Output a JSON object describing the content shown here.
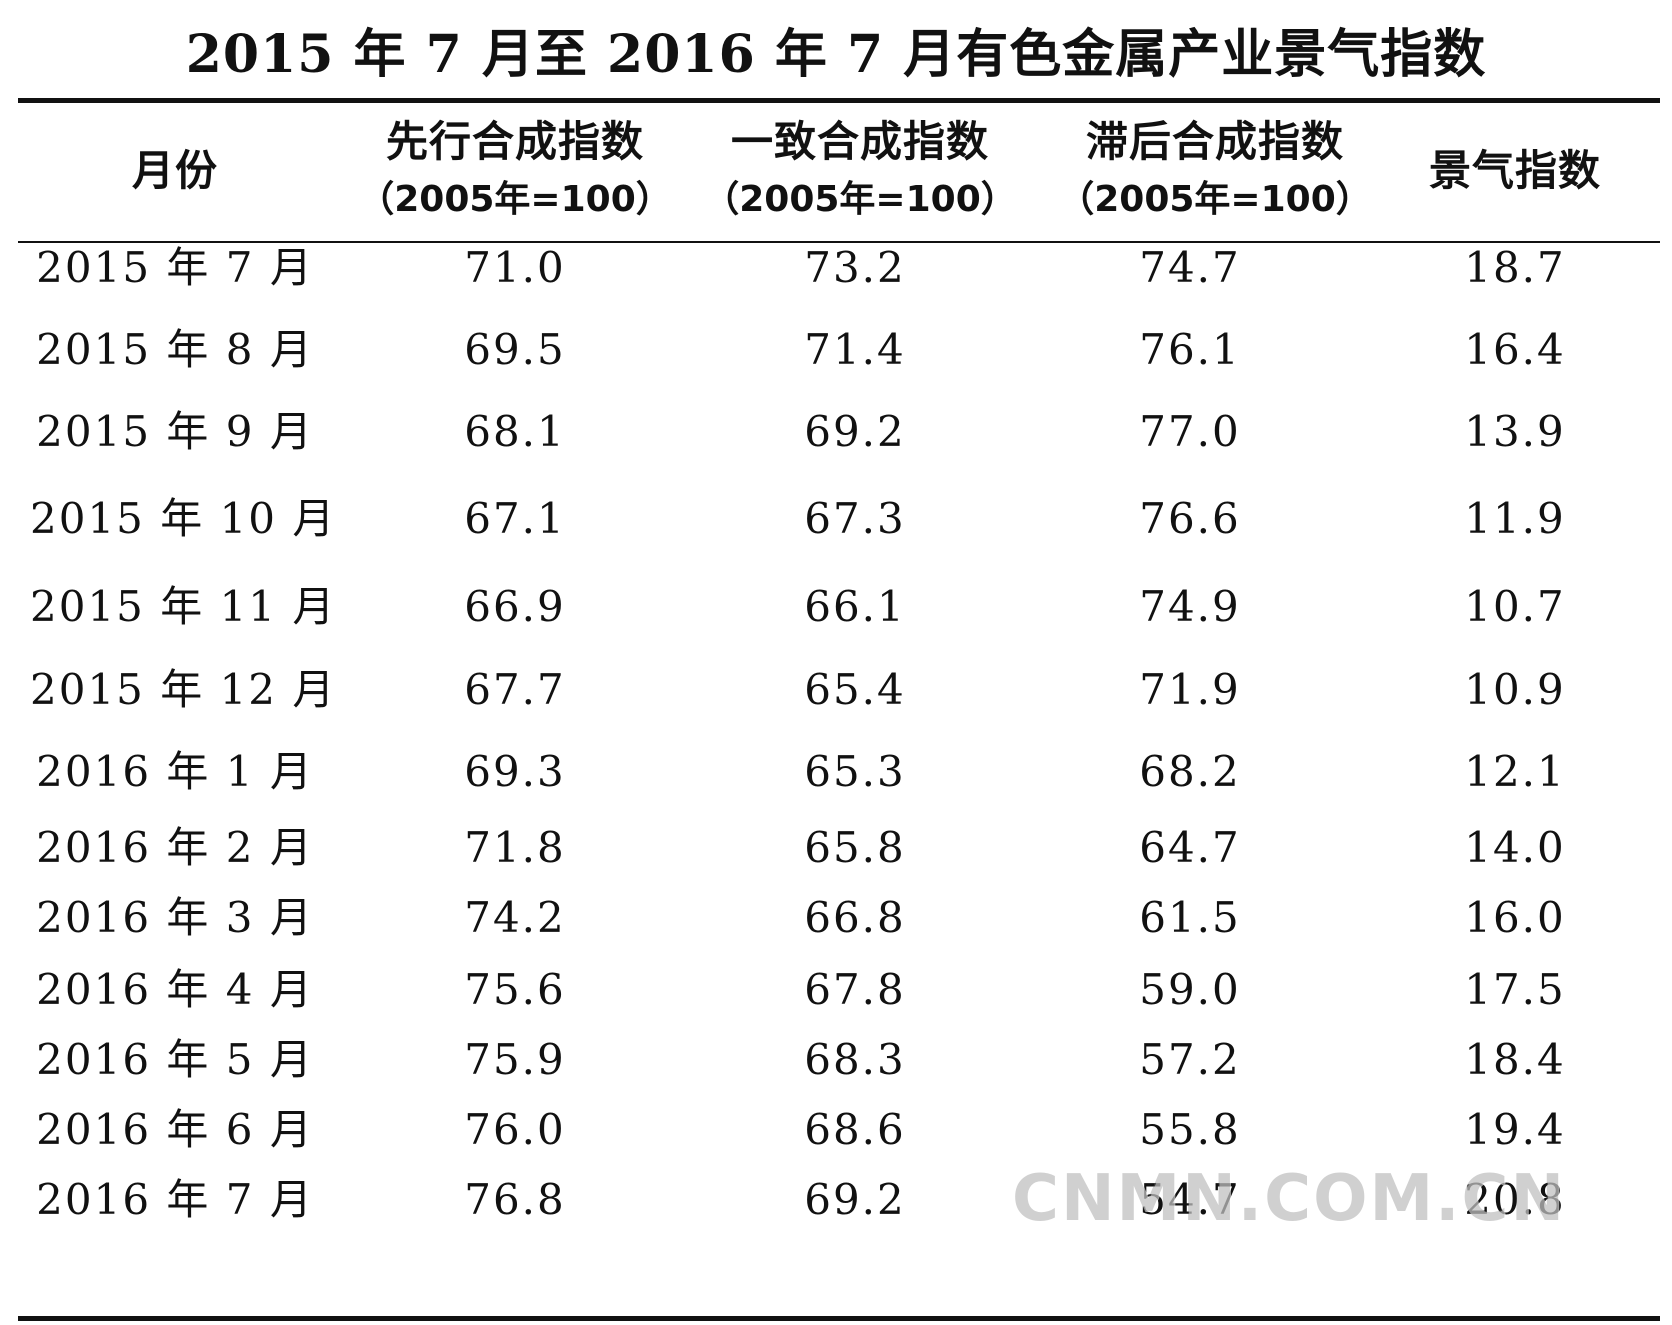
{
  "title": "2015 年 7 月至 2016 年 7 月有色金属产业景气指数",
  "watermark": "CNMN.COM.CN",
  "table": {
    "headers": [
      {
        "line1": "月份",
        "line2": ""
      },
      {
        "line1": "先行合成指数",
        "line2": "（2005年=100）"
      },
      {
        "line1": "一致合成指数",
        "line2": "（2005年=100）"
      },
      {
        "line1": "滞后合成指数",
        "line2": "（2005年=100）"
      },
      {
        "line1": "景气指数",
        "line2": ""
      }
    ],
    "rows": [
      [
        "2015 年 7 月",
        "71.0",
        "73.2",
        "74.7",
        "18.7"
      ],
      [
        "2015 年 8 月",
        "69.5",
        "71.4",
        "76.1",
        "16.4"
      ],
      [
        "2015 年 9 月",
        "68.1",
        "69.2",
        "77.0",
        "13.9"
      ],
      [
        "2015 年 10 月",
        "67.1",
        "67.3",
        "76.6",
        "11.9"
      ],
      [
        "2015 年 11 月",
        "66.9",
        "66.1",
        "74.9",
        "10.7"
      ],
      [
        "2015 年 12 月",
        "67.7",
        "65.4",
        "71.9",
        "10.9"
      ],
      [
        "2016 年 1 月",
        "69.3",
        "65.3",
        "68.2",
        "12.1"
      ],
      [
        "2016 年 2 月",
        "71.8",
        "65.8",
        "64.7",
        "14.0"
      ],
      [
        "2016 年 3 月",
        "74.2",
        "66.8",
        "61.5",
        "16.0"
      ],
      [
        "2016 年 4 月",
        "75.6",
        "67.8",
        "59.0",
        "17.5"
      ],
      [
        "2016 年 5 月",
        "75.9",
        "68.3",
        "57.2",
        "18.4"
      ],
      [
        "2016 年 6 月",
        "76.0",
        "68.6",
        "55.8",
        "19.4"
      ],
      [
        "2016 年 7 月",
        "76.8",
        "69.2",
        "54.7",
        "20.8"
      ]
    ]
  }
}
